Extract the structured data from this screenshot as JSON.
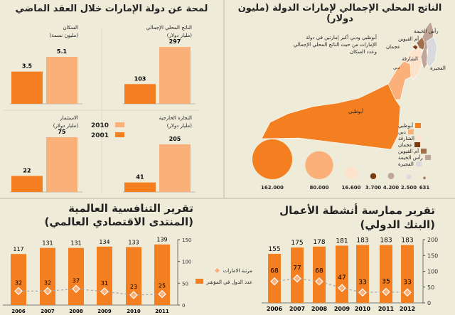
{
  "colors": {
    "orange": "#f47f20",
    "light": "#fbb07a",
    "bg": "#efebd9",
    "grid": "#999999"
  },
  "map": {
    "title": "الناتج المحلي الإجمالي لإمارات الدولة (مليون دولار)",
    "note": "أبوظبي ودبي أكبر إمارتين في دولة الإمارات من حيث الناتج المحلي الإجمالي وعدد السكان",
    "labels": {
      "rak": "رأس الخيمة",
      "uaq": "أم القيوين",
      "ajman": "عجمان",
      "sharjah": "الشارقة",
      "fujairah": "الفجيرة",
      "dubai": "دبي",
      "abudhabi": "أبوظبي"
    },
    "legend": [
      {
        "label": "أبوظبي",
        "color": "#f47f20"
      },
      {
        "label": "دبي",
        "color": "#fbb07a"
      },
      {
        "label": "الشارقة",
        "color": "#fde3cc"
      },
      {
        "label": "عجمان",
        "color": "#7a3a0f"
      },
      {
        "label": "أم القيوين",
        "color": "#a0714c"
      },
      {
        "label": "رأس الخيمة",
        "color": "#bfa595"
      },
      {
        "label": "الفجيرة",
        "color": "#d9d9de"
      }
    ],
    "bubbles": [
      {
        "value": 162000,
        "label": "162.000",
        "color": "#f47f20"
      },
      {
        "value": 80000,
        "label": "80.000",
        "color": "#fbb07a"
      },
      {
        "value": 16600,
        "label": "16.600",
        "color": "#fde3cc"
      },
      {
        "value": 3700,
        "label": "3.700",
        "color": "#7a3a0f"
      },
      {
        "value": 4200,
        "label": "4.200",
        "color": "#bfa595"
      },
      {
        "value": 2500,
        "label": "2.500",
        "color": "#d9d9de"
      },
      {
        "value": 631,
        "label": "631",
        "color": "#a0714c"
      }
    ]
  },
  "overview": {
    "title": "لمحة عن دولة الإمارات خلال العقد الماضي",
    "legend": [
      {
        "label": "2010",
        "color": "#fbb07a"
      },
      {
        "label": "2001",
        "color": "#f47f20"
      }
    ]
  },
  "chart_data": [
    {
      "type": "bar",
      "title": "الناتج المحلي الإجمالي",
      "unit": "(مليار دولار)",
      "categories": [
        "2001",
        "2010"
      ],
      "values": [
        103,
        297
      ],
      "labels": [
        "103",
        "297"
      ]
    },
    {
      "type": "bar",
      "title": "السكان",
      "unit": "(مليون نسمة)",
      "categories": [
        "2001",
        "2010"
      ],
      "values": [
        3.5,
        5.1
      ],
      "labels": [
        "3.5",
        "5.1"
      ]
    },
    {
      "type": "bar",
      "title": "التجارة الخارجية",
      "unit": "(مليار دولار)",
      "categories": [
        "2001",
        "2010"
      ],
      "values": [
        41,
        205
      ],
      "labels": [
        "41",
        "205"
      ]
    },
    {
      "type": "bar",
      "title": "الاستثمار",
      "unit": "(مليار دولار)",
      "categories": [
        "2001",
        "2010"
      ],
      "values": [
        22,
        75
      ],
      "labels": [
        "22",
        "75"
      ]
    },
    {
      "type": "bar+line",
      "title": "تقرير التنافسية العالمية",
      "subtitle": "(المنتدى الاقتصادي العالمي)",
      "categories": [
        "2006",
        "2007",
        "2008",
        "2009",
        "2010",
        "2011"
      ],
      "series": [
        {
          "name": "عدد الدول في المؤشر",
          "values": [
            117,
            131,
            131,
            134,
            133,
            139
          ]
        },
        {
          "name": "مرتبة الامارات",
          "values": [
            32,
            32,
            37,
            31,
            23,
            25
          ]
        }
      ],
      "ylim": [
        0,
        150
      ],
      "yticks": [
        "0",
        "50",
        "100",
        "150"
      ]
    },
    {
      "type": "bar+line",
      "title": "تقرير ممارسة أنشطة الأعمال",
      "subtitle": "(البنك الدولي)",
      "categories": [
        "2006",
        "2007",
        "2008",
        "2009",
        "2010",
        "2011",
        "2012"
      ],
      "series": [
        {
          "name": "عدد الدول في المؤشر",
          "values": [
            155,
            175,
            178,
            181,
            183,
            183,
            183
          ]
        },
        {
          "name": "مرتبة الامارات",
          "values": [
            68,
            77,
            68,
            47,
            33,
            35,
            33
          ]
        }
      ],
      "ylim": [
        0,
        200
      ],
      "yticks": [
        "0",
        "50",
        "100",
        "150",
        "200"
      ]
    }
  ]
}
